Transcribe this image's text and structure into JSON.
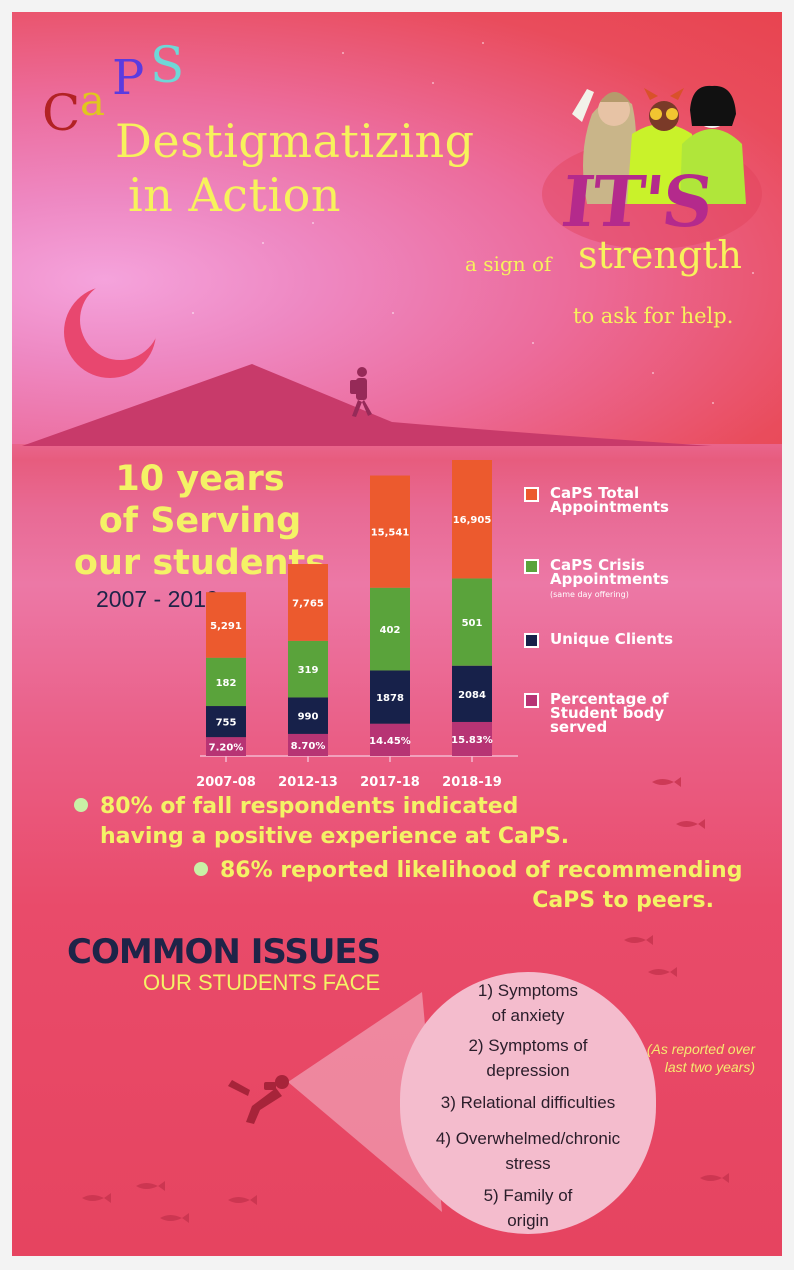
{
  "logo": {
    "letters": [
      "C",
      "a",
      "P",
      "S"
    ]
  },
  "hero": {
    "title_line1": "Destigmatizing",
    "title_line2": "in Action",
    "its": "IT'S",
    "slogan_prefix": "a sign of",
    "slogan_emphasis": "strength",
    "slogan_suffix": "to ask for help."
  },
  "serving": {
    "title_lines": [
      "10 years",
      "of Serving",
      "our students"
    ],
    "years": "2007 - 2019"
  },
  "colors": {
    "total": "#ec5a2e",
    "crisis": "#5aa33b",
    "unique": "#17214a",
    "percentage": "#b73474",
    "accent_yellow": "#f4f266"
  },
  "chart_data": {
    "type": "bar",
    "stacked": true,
    "categories": [
      "2007-08",
      "2012-13",
      "2017-18",
      "2018-19"
    ],
    "series": [
      {
        "name": "Percentage of Student body served",
        "values": [
          7.2,
          8.7,
          14.45,
          15.83
        ],
        "labels": [
          "7.20%",
          "8.70%",
          "14.45%",
          "15.83%"
        ],
        "color": "#b73474"
      },
      {
        "name": "Unique Clients",
        "values": [
          755,
          990,
          1878,
          2084
        ],
        "labels": [
          "755",
          "990",
          "1878",
          "2084"
        ],
        "color": "#17214a"
      },
      {
        "name": "CaPS Crisis Appointments",
        "values": [
          182,
          319,
          402,
          501
        ],
        "labels": [
          "182",
          "319",
          "402",
          "501"
        ],
        "color": "#5aa33b"
      },
      {
        "name": "CaPS Total Appointments",
        "values": [
          5291,
          7765,
          15541,
          16905
        ],
        "labels": [
          "5,291",
          "7,765",
          "15,541",
          "16,905"
        ],
        "color": "#ec5a2e"
      }
    ],
    "legend_position": "right",
    "grid": false
  },
  "legend": [
    {
      "label": "CaPS Total Appointments",
      "sub": ""
    },
    {
      "label": "CaPS Crisis Appointments",
      "sub": "(same day offering)"
    },
    {
      "label": "Unique Clients",
      "sub": ""
    },
    {
      "label": "Percentage of Student body served",
      "sub": ""
    }
  ],
  "facts": [
    {
      "line1": "80% of fall respondents indicated",
      "line2": "having a positive experience at CaPS."
    },
    {
      "line1": "86% reported likelihood of recommending",
      "line2": "CaPS to peers."
    }
  ],
  "issues": {
    "title": "COMMON ISSUES",
    "subtitle": "OUR STUDENTS FACE",
    "note": "(As reported over last two years)",
    "items": [
      [
        "1) Symptoms",
        "of anxiety"
      ],
      [
        "2) Symptoms of",
        "depression"
      ],
      [
        "3) Relational difficulties"
      ],
      [
        "4) Overwhelmed/chronic",
        "stress"
      ],
      [
        "5) Family of",
        "origin"
      ]
    ]
  }
}
